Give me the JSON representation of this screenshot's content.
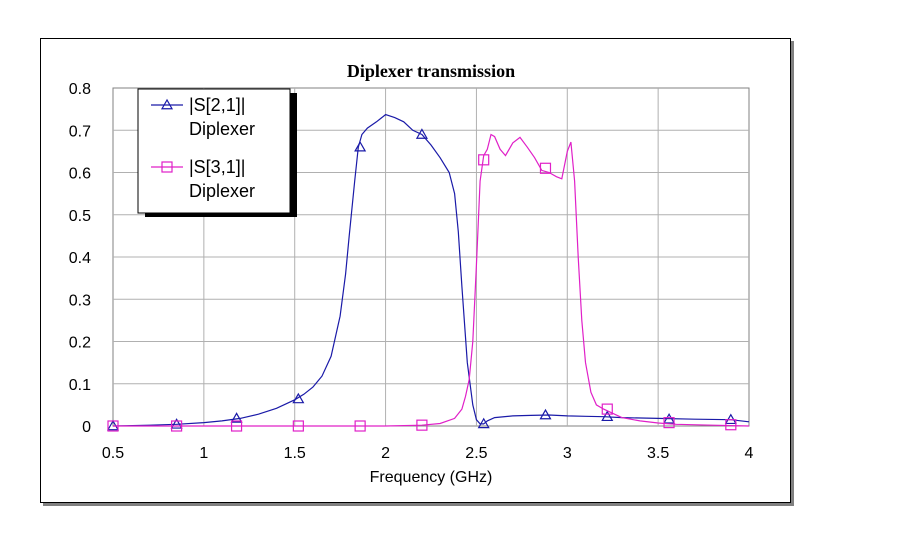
{
  "chart_data": {
    "type": "line",
    "title": "Diplexer transmission",
    "xlabel": "Frequency (GHz)",
    "ylabel": "",
    "xlim": [
      0.5,
      4
    ],
    "ylim": [
      0,
      0.8
    ],
    "x_ticks": [
      "0.5",
      "1",
      "1.5",
      "2",
      "2.5",
      "3",
      "3.5",
      "4"
    ],
    "y_ticks": [
      "0",
      "0.1",
      "0.2",
      "0.3",
      "0.4",
      "0.5",
      "0.6",
      "0.7",
      "0.8"
    ],
    "grid": true,
    "legend_position": "top-left",
    "series": [
      {
        "name": "|S[2,1]|",
        "subname": "Diplexer",
        "color": "#1a1aa8",
        "marker": "triangle",
        "x": [
          0.5,
          0.7,
          0.85,
          1.0,
          1.1,
          1.2,
          1.3,
          1.4,
          1.5,
          1.55,
          1.6,
          1.65,
          1.7,
          1.75,
          1.78,
          1.8,
          1.83,
          1.85,
          1.87,
          1.9,
          1.95,
          2.0,
          2.05,
          2.1,
          2.15,
          2.2,
          2.25,
          2.3,
          2.35,
          2.38,
          2.4,
          2.42,
          2.45,
          2.48,
          2.5,
          2.52,
          2.54,
          2.56,
          2.6,
          2.7,
          2.8,
          2.9,
          3.0,
          3.1,
          3.2,
          3.3,
          3.5,
          3.7,
          3.9,
          4.0
        ],
        "y": [
          0.0,
          0.002,
          0.004,
          0.008,
          0.012,
          0.018,
          0.028,
          0.042,
          0.062,
          0.075,
          0.092,
          0.118,
          0.165,
          0.26,
          0.36,
          0.45,
          0.58,
          0.66,
          0.69,
          0.705,
          0.72,
          0.737,
          0.73,
          0.72,
          0.7,
          0.69,
          0.665,
          0.635,
          0.6,
          0.55,
          0.46,
          0.33,
          0.15,
          0.05,
          0.015,
          0.005,
          0.005,
          0.012,
          0.02,
          0.024,
          0.025,
          0.026,
          0.024,
          0.023,
          0.022,
          0.02,
          0.018,
          0.016,
          0.015,
          0.01
        ],
        "markers_x": [
          0.5,
          0.85,
          1.18,
          1.52,
          1.86,
          2.2,
          2.54,
          2.88,
          3.22,
          3.56,
          3.9
        ],
        "markers_y": [
          0.0,
          0.004,
          0.018,
          0.064,
          0.66,
          0.69,
          0.005,
          0.026,
          0.022,
          0.016,
          0.015
        ]
      },
      {
        "name": "|S[3,1]|",
        "subname": "Diplexer",
        "color": "#e020c8",
        "marker": "square",
        "x": [
          0.5,
          1.0,
          1.5,
          1.86,
          2.0,
          2.2,
          2.3,
          2.38,
          2.42,
          2.44,
          2.46,
          2.48,
          2.5,
          2.52,
          2.54,
          2.56,
          2.58,
          2.6,
          2.63,
          2.66,
          2.7,
          2.74,
          2.78,
          2.82,
          2.86,
          2.9,
          2.94,
          2.97,
          3.0,
          3.02,
          3.04,
          3.06,
          3.08,
          3.1,
          3.13,
          3.16,
          3.2,
          3.25,
          3.3,
          3.4,
          3.5,
          3.6,
          3.8,
          4.0
        ],
        "y": [
          0.0,
          0.0,
          0.0,
          0.0,
          0.0,
          0.002,
          0.006,
          0.018,
          0.04,
          0.07,
          0.11,
          0.2,
          0.38,
          0.58,
          0.64,
          0.655,
          0.69,
          0.685,
          0.655,
          0.64,
          0.67,
          0.683,
          0.66,
          0.635,
          0.605,
          0.6,
          0.59,
          0.585,
          0.65,
          0.672,
          0.58,
          0.4,
          0.25,
          0.15,
          0.08,
          0.05,
          0.04,
          0.03,
          0.02,
          0.012,
          0.007,
          0.004,
          0.002,
          0.0
        ],
        "markers_x": [
          0.5,
          0.85,
          1.18,
          1.52,
          1.86,
          2.2,
          2.54,
          2.88,
          3.22,
          3.56,
          3.9
        ],
        "markers_y": [
          0.0,
          0.0,
          0.0,
          0.0,
          0.0,
          0.002,
          0.63,
          0.61,
          0.04,
          0.008,
          0.003
        ]
      }
    ]
  }
}
